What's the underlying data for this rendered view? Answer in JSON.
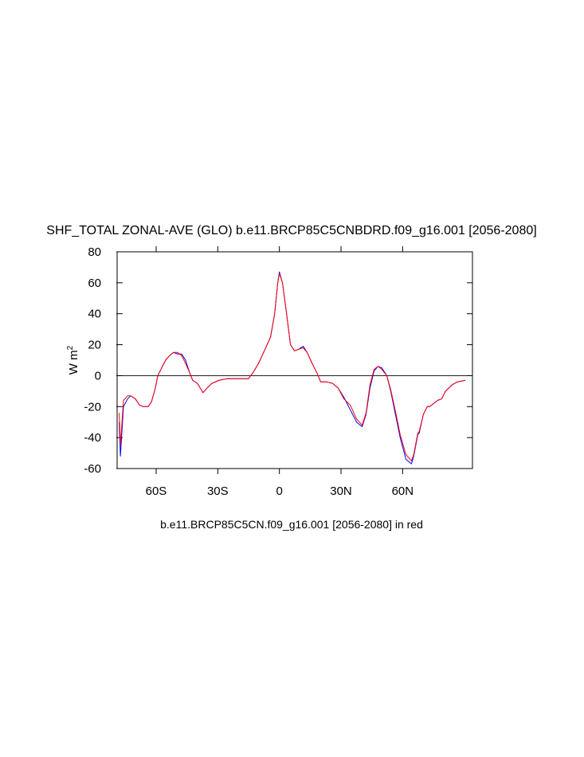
{
  "chart_data": {
    "type": "line",
    "title": "SHF_TOTAL ZONAL-AVE (GLO) b.e11.BRCP85C5CNBDRD.f09_g16.001 [2056-2080]",
    "subtitle": "b.e11.BRCP85C5CN.f09_g16.001 [2056-2080] in red",
    "ylabel": "W m",
    "ylabel_superscript": "2",
    "xlim": [
      -79,
      94
    ],
    "ylim": [
      -60,
      80
    ],
    "xticks": [
      {
        "value": -60,
        "label": "60S"
      },
      {
        "value": -30,
        "label": "30S"
      },
      0,
      {
        "value": 30,
        "label": "30N"
      },
      {
        "value": 60,
        "label": "60N"
      }
    ],
    "yticks": [
      -60,
      -40,
      -20,
      0,
      20,
      40,
      60,
      80
    ],
    "reference_line": 0,
    "x": [
      -78,
      -77.4,
      -75.9,
      -73.9,
      -72.4,
      -70.1,
      -68.1,
      -66.2,
      -63.9,
      -62.3,
      -60.4,
      -59.2,
      -57.3,
      -55.4,
      -53.4,
      -51.5,
      -49.6,
      -47.6,
      -45.7,
      -43.7,
      -42.2,
      -39.9,
      -37.2,
      -35.2,
      -32.9,
      -29.4,
      -25.6,
      -19.7,
      -15.1,
      -12.8,
      -10.1,
      -7,
      -4.3,
      -2.3,
      -0.8,
      0,
      1.5,
      3.5,
      5.4,
      7.4,
      9.3,
      11.6,
      13.5,
      15.9,
      18.2,
      20.1,
      22.8,
      25.9,
      28.6,
      31.4,
      34.5,
      37.6,
      40.3,
      42.2,
      44.1,
      46.1,
      48,
      49.9,
      52.3,
      54.2,
      56.5,
      58.8,
      61.6,
      64.3,
      65.4,
      67.4,
      68.1,
      70.1,
      72,
      73.2,
      75.1,
      77,
      79,
      80.9,
      84,
      86.7,
      90.6
    ],
    "series": [
      {
        "color": "#0000ff",
        "values": [
          -30,
          -52,
          -20,
          -15,
          -13,
          -15,
          -19,
          -20,
          -20,
          -17,
          -8,
          0,
          5,
          10,
          13,
          15,
          14,
          14,
          10,
          2,
          -3,
          -5,
          -11,
          -8,
          -5,
          -3,
          -2,
          -2,
          -2,
          2,
          8,
          17,
          25,
          40,
          60,
          67,
          60,
          40,
          20,
          16,
          17,
          19,
          15,
          8,
          2,
          -4,
          -4,
          -5,
          -8,
          -14,
          -22,
          -30,
          -33,
          -25,
          -8,
          3,
          6,
          5,
          0,
          -10,
          -25,
          -40,
          -54,
          -57,
          -52,
          -38,
          -37,
          -25,
          -20,
          -20,
          -18,
          -16,
          -15,
          -10,
          -6,
          -4,
          -3
        ]
      },
      {
        "color": "#ff0000",
        "values": [
          -24,
          -45,
          -16,
          -13,
          -13,
          -15,
          -19,
          -20,
          -20,
          -17,
          -8,
          0,
          5,
          10,
          13,
          15,
          15,
          13,
          8,
          2,
          -3,
          -5,
          -11,
          -8,
          -5,
          -3,
          -2,
          -2,
          -2,
          2,
          8,
          17,
          25,
          40,
          60,
          66,
          60,
          40,
          20,
          16,
          17,
          18,
          15,
          8,
          2,
          -4,
          -4,
          -5,
          -8,
          -15,
          -19,
          -28,
          -32,
          -24,
          -6,
          4,
          6,
          4,
          0,
          -9,
          -23,
          -38,
          -51,
          -55,
          -51,
          -37,
          -36,
          -25,
          -20,
          -20,
          -18,
          -16,
          -15,
          -10,
          -6,
          -4,
          -3
        ]
      }
    ]
  }
}
